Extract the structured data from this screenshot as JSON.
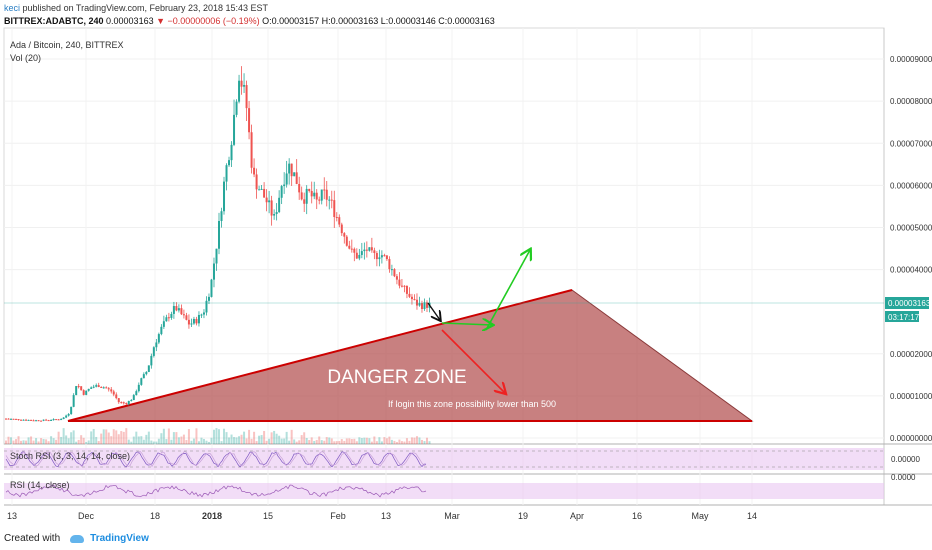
{
  "header": {
    "publisher": "keci",
    "published_text": "published on TradingView.com, February 23, 2018 15:43 EST",
    "symbol": "BITTREX:ADABTC, 240",
    "last": "0.00003163",
    "change": "▼ −0.00000006 (−0.19%)",
    "ohlc": "O:0.00003157 H:0.00003163 L:0.00003146 C:0.00003163"
  },
  "pane_labels": {
    "main_title": "Ada / Bitcoin, 240, BITTREX",
    "vol": "Vol (20)",
    "stoch": "Stoch RSI (3, 3, 14, 14, close)",
    "rsi": "RSI (14, close)"
  },
  "price_badge": {
    "price": "0.00003163",
    "timer": "03:17:17"
  },
  "footer": {
    "created_with": "Created with",
    "brand": "TradingView"
  },
  "colors": {
    "up": "#26a69a",
    "down": "#ef5350",
    "zone_fill": "#b55555",
    "trendline": "#cc0000",
    "arrow_green": "#22cc22",
    "arrow_red": "#ee2222",
    "osc_band": "#e9c7f2",
    "osc_line": "#9b59b6",
    "price_badge": "#26a69a"
  },
  "chart_data": {
    "type": "candlestick",
    "y_ticks": [
      "0.00009000",
      "0.00008000",
      "0.00007000",
      "0.00006000",
      "0.00005000",
      "0.00004000",
      "0.00002000",
      "0.00001000",
      "0.00000000"
    ],
    "y_range": [
      0,
      9.5e-05
    ],
    "x_ticks": [
      "13",
      "Dec",
      "18",
      "2018",
      "15",
      "Feb",
      "13",
      "Mar",
      "19",
      "Apr",
      "16",
      "May",
      "14"
    ],
    "price_path": [
      4.6e-06,
      4.5e-06,
      4.4e-06,
      4.3e-06,
      4.2e-06,
      4.2e-06,
      4.3e-06,
      4.4e-06,
      4.6e-06,
      6e-06,
      1.3e-05,
      1.05e-05,
      1.2e-05,
      1.25e-05,
      1.2e-05,
      1.1e-05,
      8.5e-06,
      8.2e-06,
      9.5e-06,
      1.35e-05,
      1.6e-05,
      2.2e-05,
      2.6e-05,
      2.9e-05,
      3.1e-05,
      2.9e-05,
      2.7e-05,
      2.8e-05,
      3e-05,
      3.6e-05,
      4.8e-05,
      6.2e-05,
      7.2e-05,
      8.7e-05,
      8e-05,
      6.2e-05,
      5.9e-05,
      5.6e-05,
      5.2e-05,
      6e-05,
      6.5e-05,
      6.2e-05,
      5.7e-05,
      5.8e-05,
      5.6e-05,
      5.8e-05,
      5.6e-05,
      5.2e-05,
      4.8e-05,
      4.4e-05,
      4.3e-05,
      4.5e-05,
      4.3e-05,
      4.4e-05,
      4.2e-05,
      3.9e-05,
      3.6e-05,
      3.4e-05,
      3.2e-05,
      3.15e-05,
      3.163e-05
    ],
    "annotations": {
      "zone_label": "DANGER ZONE",
      "zone_note": "If login this zone possibility lower than 500"
    },
    "grid": true,
    "legend": "none"
  }
}
